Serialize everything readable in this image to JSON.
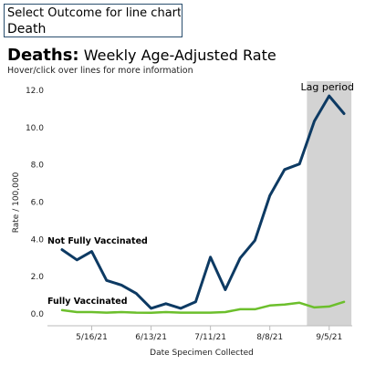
{
  "selector": {
    "label": "Select Outcome for line chart b..",
    "value": "Death"
  },
  "title_bold": "Deaths:",
  "title_rest": "Weekly Age-Adjusted Rate",
  "subtitle": "Hover/click over lines for more information",
  "chart_data": {
    "type": "line",
    "xlabel": "Date Specimen Collected",
    "ylabel": "Rate / 100,000",
    "ylim": [
      0,
      12
    ],
    "yticks": [
      0.0,
      2.0,
      4.0,
      6.0,
      8.0,
      10.0,
      12.0
    ],
    "ytick_labels": [
      "0.0",
      "2.0",
      "4.0",
      "6.0",
      "8.0",
      "10.0",
      "12.0"
    ],
    "xtick_labels": [
      "5/16/21",
      "6/13/21",
      "7/11/21",
      "8/8/21",
      "9/5/21"
    ],
    "xtick_index": [
      2,
      6,
      10,
      14,
      18
    ],
    "grid": false,
    "lag_period": {
      "label": "Lag period",
      "start_index": 17,
      "end_index": 19
    },
    "series": [
      {
        "name": "Not Fully Vaccinated",
        "color": "#0d3a63",
        "values": [
          3.4,
          2.85,
          3.3,
          1.75,
          1.5,
          1.05,
          0.25,
          0.5,
          0.25,
          0.6,
          3.0,
          1.25,
          2.95,
          3.9,
          6.3,
          7.7,
          8.0,
          10.3,
          11.65,
          10.7
        ]
      },
      {
        "name": "Fully Vaccinated",
        "color": "#6cbf2c",
        "values": [
          0.15,
          0.05,
          0.05,
          0.02,
          0.05,
          0.02,
          0.01,
          0.05,
          0.02,
          0.02,
          0.02,
          0.05,
          0.2,
          0.2,
          0.4,
          0.45,
          0.55,
          0.3,
          0.35,
          0.6
        ]
      }
    ]
  }
}
